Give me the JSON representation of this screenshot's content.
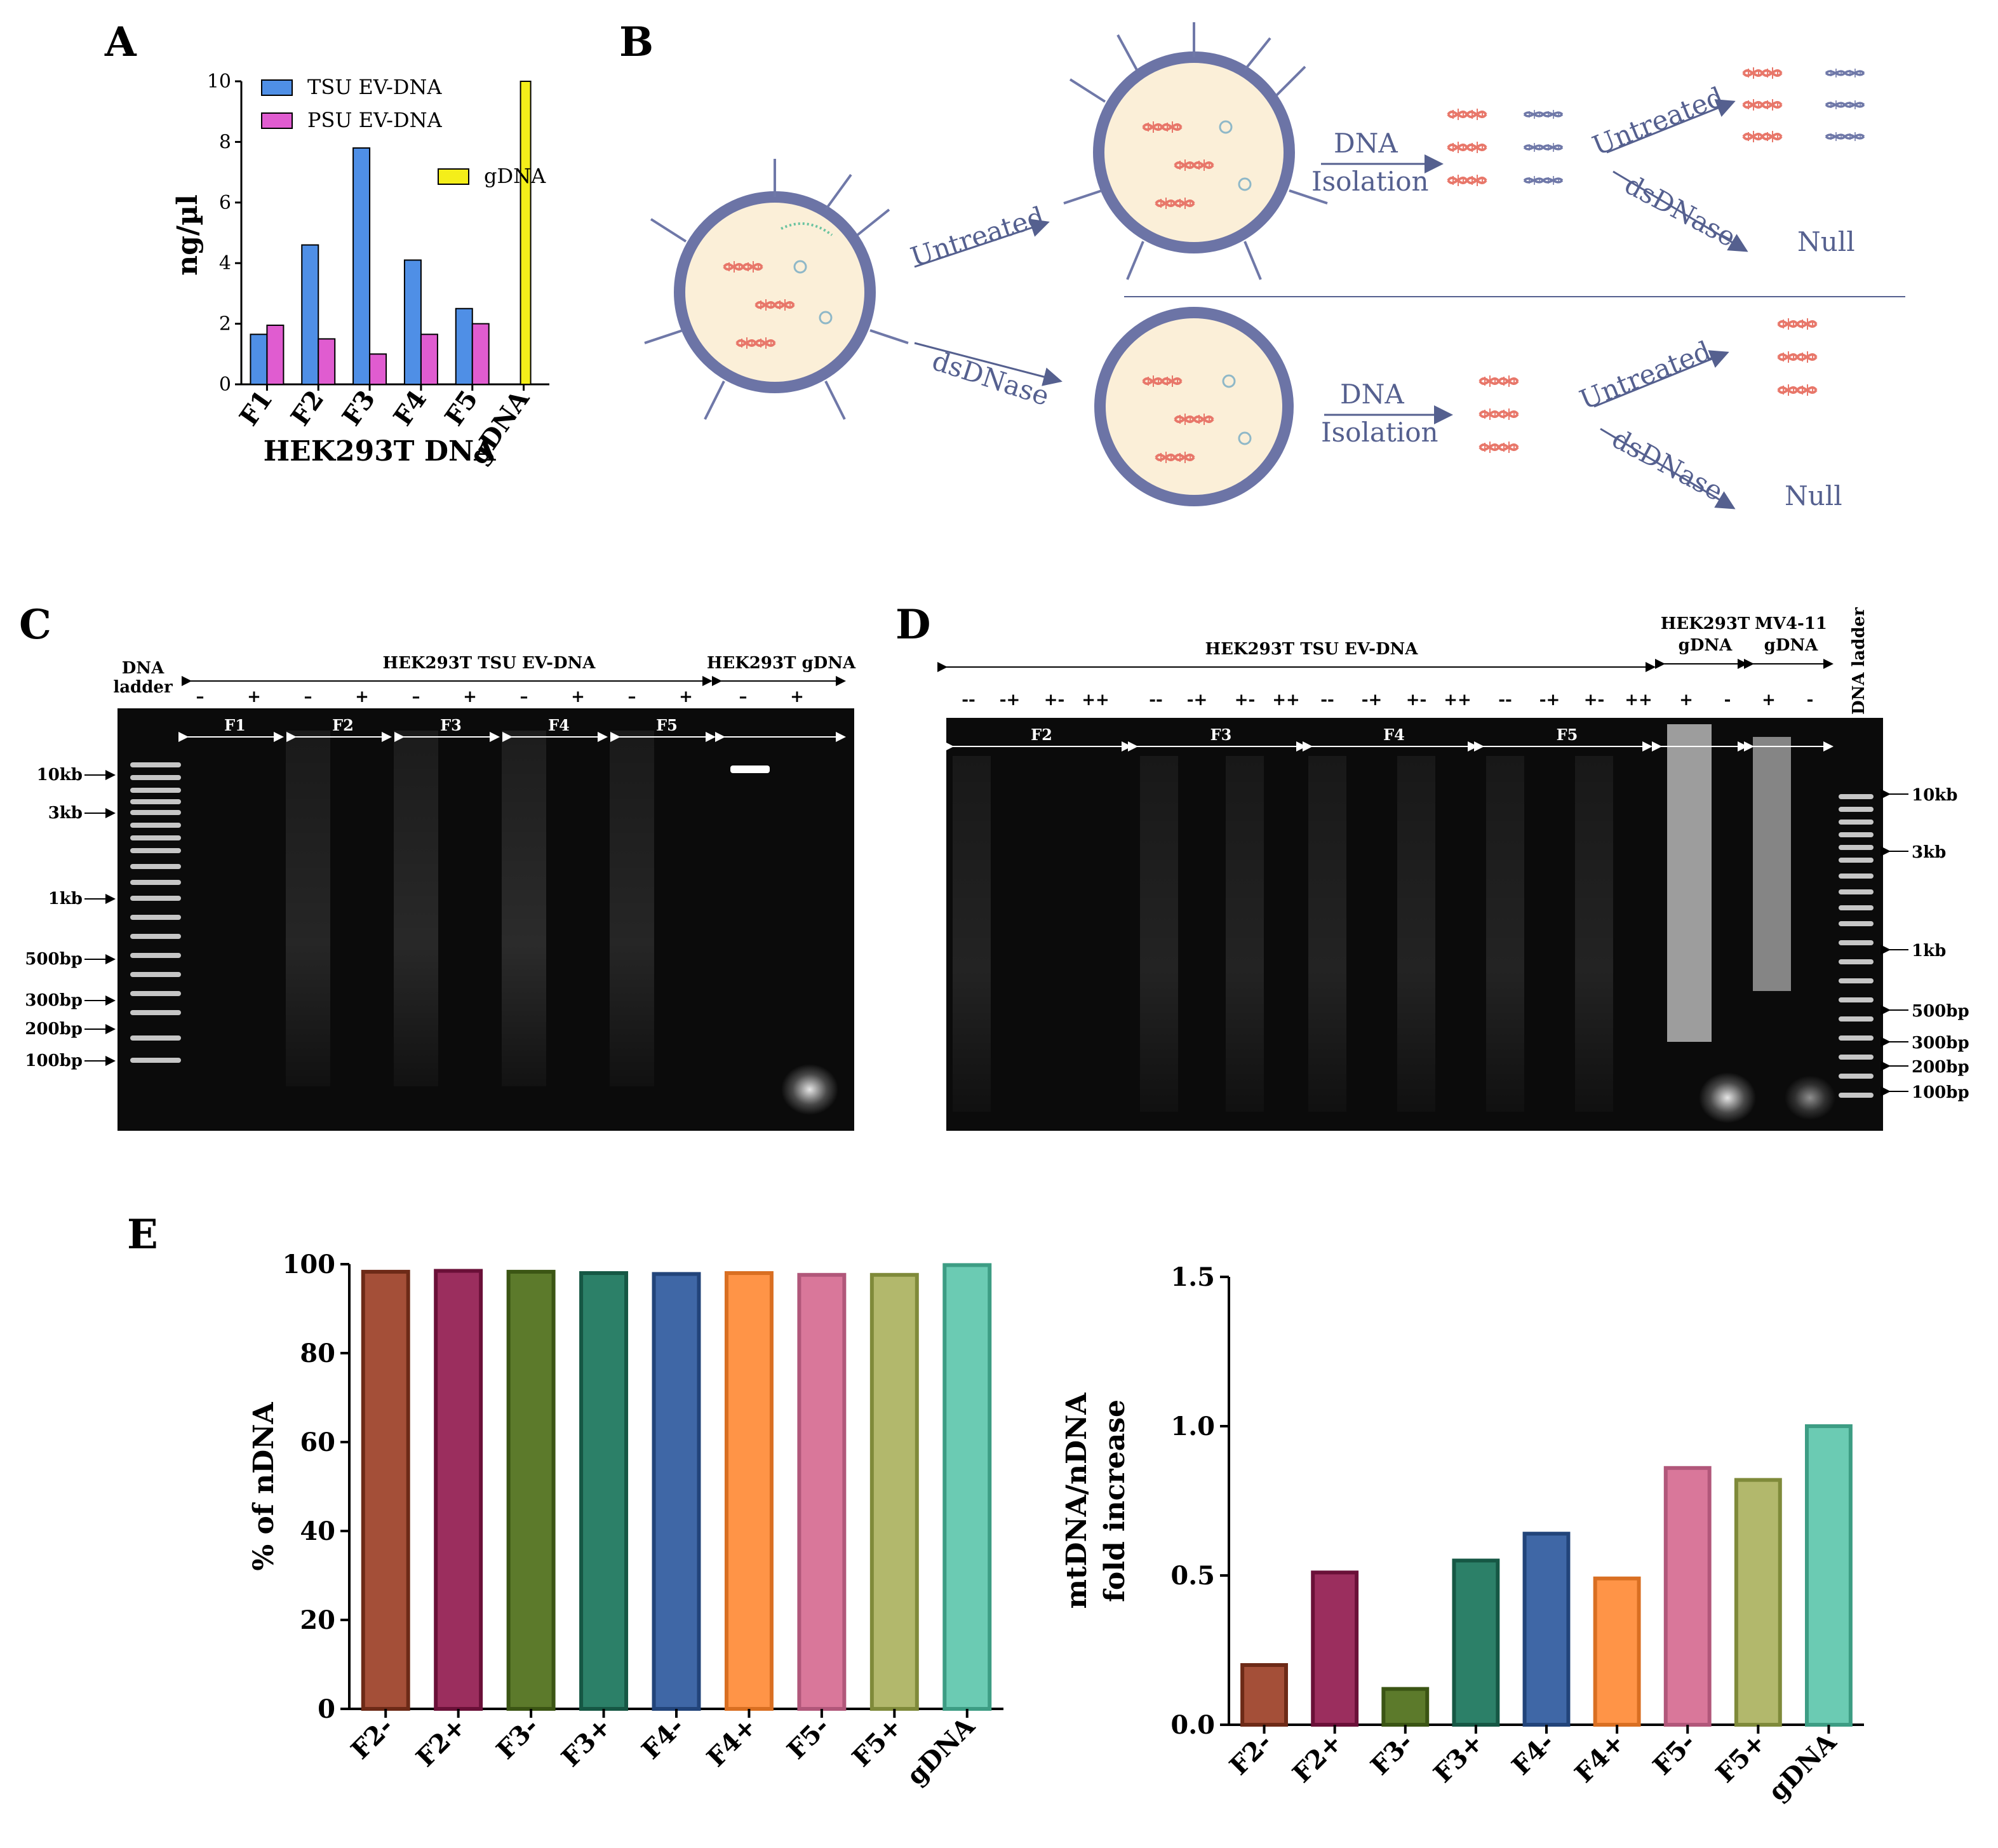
{
  "panels": {
    "a": "A",
    "b": "B",
    "c": "C",
    "d": "D",
    "e": "E"
  },
  "colors": {
    "tsu": "#4f8fe6",
    "psu": "#e05cd0",
    "gdna": "#f4ee1a",
    "diagram": "#55608f",
    "dna_red": "#e8776a",
    "dna_blue": "#6f78a8",
    "ev_fill": "#fbefd8",
    "ev_ring": "#6c74a6"
  },
  "chart_data": [
    {
      "type": "bar",
      "categories": [
        "F1",
        "F2",
        "F3",
        "F4",
        "F5",
        "gDNA"
      ],
      "series": [
        {
          "name": "TSU EV-DNA",
          "values": [
            1.65,
            4.6,
            7.8,
            4.1,
            2.5,
            null
          ]
        },
        {
          "name": "PSU EV-DNA",
          "values": [
            1.95,
            1.5,
            1.0,
            1.65,
            2.0,
            null
          ]
        },
        {
          "name": "gDNA",
          "values": [
            null,
            null,
            null,
            null,
            null,
            10
          ]
        }
      ],
      "xlabel": "HEK293T DNA",
      "ylabel": "ng/µl",
      "ylim": [
        0,
        10
      ],
      "yticks": [
        "0",
        "2",
        "4",
        "6",
        "8",
        "10"
      ],
      "legend": "top-left"
    },
    {
      "type": "bar",
      "categories": [
        "F2-",
        "F2+",
        "F3-",
        "F3+",
        "F4-",
        "F4+",
        "F5-",
        "F5+",
        "gDNA"
      ],
      "values": [
        98.3,
        98.5,
        98.3,
        98.0,
        97.8,
        98.0,
        97.6,
        97.6,
        99.8
      ],
      "colors": [
        "#a44f38",
        "#9b2e5e",
        "#5c7a2b",
        "#2c8068",
        "#3f67a6",
        "#ff9447",
        "#d9779a",
        "#b2b86c",
        "#6bcbb3"
      ],
      "edge_colors": [
        "#6d2a17",
        "#6a1038",
        "#3b5514",
        "#165744",
        "#22447a",
        "#d96f22",
        "#b1577a",
        "#7f8a3a",
        "#3d9d84"
      ],
      "ylabel": "% of nDNA",
      "ylim": [
        0,
        100
      ],
      "yticks": [
        "0",
        "20",
        "40",
        "60",
        "80",
        "100"
      ]
    },
    {
      "type": "bar",
      "categories": [
        "F2-",
        "F2+",
        "F3-",
        "F3+",
        "F4-",
        "F4+",
        "F5-",
        "F5+",
        "gDNA"
      ],
      "values": [
        0.2,
        0.51,
        0.12,
        0.55,
        0.64,
        0.49,
        0.86,
        0.82,
        1.0
      ],
      "colors": [
        "#a44f38",
        "#9b2e5e",
        "#5c7a2b",
        "#2c8068",
        "#3f67a6",
        "#ff9447",
        "#d9779a",
        "#b2b86c",
        "#6bcbb3"
      ],
      "edge_colors": [
        "#6d2a17",
        "#6a1038",
        "#3b5514",
        "#165744",
        "#22447a",
        "#d96f22",
        "#b1577a",
        "#7f8a3a",
        "#3d9d84"
      ],
      "ylabel": [
        "mtDNA/nDNA",
        "fold increase"
      ],
      "ylim": [
        0,
        1.5
      ],
      "yticks": [
        "0.0",
        "0.5",
        "1.0",
        "1.5"
      ]
    }
  ],
  "diagram": {
    "untreated": "Untreated",
    "dsdnase": "dsDNase",
    "dna": "DNA",
    "isolation": "Isolation",
    "null": "Null"
  },
  "gel_c": {
    "ladder_title": [
      "DNA",
      "ladder"
    ],
    "group1": "HEK293T TSU EV-DNA",
    "group2": "HEK293T gDNA",
    "signs": [
      "–",
      "+",
      "–",
      "+",
      "–",
      "+",
      "–",
      "+",
      "–",
      "+",
      "–",
      "+"
    ],
    "fractions": [
      "F1",
      "F2",
      "F3",
      "F4",
      "F5"
    ],
    "markers": [
      "10kb",
      "3kb",
      "1kb",
      "500bp",
      "300bp",
      "200bp",
      "100bp"
    ]
  },
  "gel_d": {
    "group1": "HEK293T TSU EV-DNA",
    "group2": [
      "HEK293T",
      "gDNA"
    ],
    "group3": [
      "MV4-11",
      "gDNA"
    ],
    "ladder_title": "DNA ladder",
    "signs": [
      "--",
      "-+",
      "+-",
      "++",
      "--",
      "-+",
      "+-",
      "++",
      "--",
      "-+",
      "+-",
      "++",
      "--",
      "-+",
      "+-",
      "++",
      "+",
      "-",
      "+",
      "-"
    ],
    "fractions": [
      "F2",
      "F3",
      "F4",
      "F5"
    ],
    "markers": [
      "10kb",
      "3kb",
      "1kb",
      "500bp",
      "300bp",
      "200bp",
      "100bp"
    ]
  }
}
